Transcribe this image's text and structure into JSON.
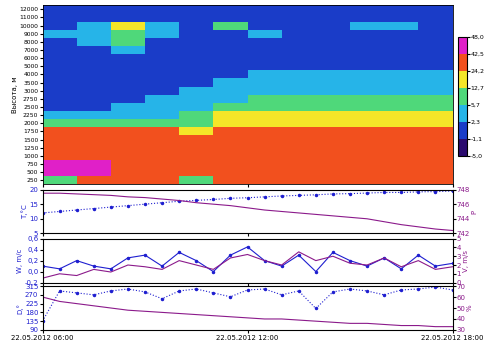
{
  "chart_data": [
    {
      "type": "heatmap",
      "y_label": "Высота, м",
      "x": [
        6.5,
        7.5,
        8.5,
        9.5,
        10.5,
        11.5,
        12.5,
        13.5,
        14.5,
        15.5,
        16.5,
        17.5
      ],
      "categories": [
        "250",
        "500",
        "750",
        "1000",
        "1250",
        "1500",
        "1750",
        "2000",
        "2250",
        "2500",
        "2750",
        "3000",
        "3500",
        "4000",
        "5000",
        "6000",
        "7000",
        "8000",
        "9000",
        "10000",
        "11000",
        "12000"
      ],
      "cells": [
        [
          10,
          30,
          30,
          35,
          8,
          30,
          35,
          30,
          30,
          30,
          30,
          30
        ],
        [
          45,
          45,
          40,
          40,
          35,
          30,
          30,
          30,
          30,
          30,
          28,
          30
        ],
        [
          45,
          45,
          40,
          40,
          35,
          30,
          30,
          30,
          30,
          30,
          28,
          28
        ],
        [
          40,
          42,
          40,
          35,
          30,
          30,
          28,
          30,
          28,
          28,
          28,
          28
        ],
        [
          40,
          40,
          35,
          30,
          30,
          28,
          28,
          28,
          28,
          28,
          26,
          26
        ],
        [
          35,
          35,
          30,
          28,
          25,
          28,
          26,
          26,
          26,
          26,
          26,
          26
        ],
        [
          30,
          28,
          28,
          25,
          20,
          25,
          26,
          25,
          25,
          25,
          25,
          25
        ],
        [
          8,
          8,
          8,
          10,
          8,
          20,
          20,
          20,
          20,
          20,
          20,
          20
        ],
        [
          3,
          3,
          4,
          5,
          6,
          15,
          14,
          15,
          14,
          15,
          15,
          15
        ],
        [
          2,
          2,
          3,
          4,
          5,
          8,
          9,
          9,
          9,
          9,
          9,
          9
        ],
        [
          2,
          2,
          2,
          3,
          4,
          5,
          6,
          6,
          6,
          6,
          6,
          6
        ],
        [
          1.5,
          1.5,
          2,
          2,
          3,
          4,
          4,
          4,
          4,
          4,
          4,
          4
        ],
        [
          1,
          1,
          1.5,
          2,
          2,
          3,
          3,
          3,
          3,
          3,
          3,
          3
        ],
        [
          1,
          1,
          1,
          1.5,
          1.5,
          2,
          2.5,
          2.5,
          2.5,
          2.5,
          2.5,
          2.5
        ],
        [
          0.5,
          1,
          1,
          1,
          1,
          1.5,
          2,
          2,
          2,
          2,
          2,
          2
        ],
        [
          0.5,
          0.5,
          1,
          1,
          1,
          1.5,
          1.5,
          1.5,
          1.5,
          1.5,
          1.5,
          1.5
        ],
        [
          0.5,
          1,
          3,
          1,
          1,
          1,
          1.5,
          1.5,
          1,
          1.5,
          1.5,
          1
        ],
        [
          1,
          4,
          6,
          1,
          1,
          1,
          1,
          1,
          1,
          1,
          1,
          1
        ],
        [
          3,
          4,
          8,
          3,
          2,
          2,
          3,
          2,
          2,
          2,
          2,
          2
        ],
        [
          2,
          3,
          13,
          3,
          2,
          6,
          2,
          2,
          2,
          3,
          4,
          2
        ],
        [
          1,
          1,
          2,
          1,
          1,
          2,
          1,
          1,
          1,
          1,
          2,
          1
        ],
        [
          0,
          0,
          1,
          0,
          0,
          1,
          0,
          0,
          0,
          0,
          1,
          0
        ]
      ],
      "colors": [
        "#2a0a6e",
        "#1a3cc8",
        "#26b4e8",
        "#4fd87a",
        "#f5e628",
        "#f2501e",
        "#e020c8"
      ],
      "colorbar_range": [
        -5.0,
        48.0
      ],
      "colorbar_ticks": [
        {
          "value": -5.0,
          "label": "-5,0"
        },
        {
          "value": -1.1,
          "label": "-1,1"
        },
        {
          "value": 2.3,
          "label": "2,3"
        },
        {
          "value": 5.7,
          "label": "5,7"
        },
        {
          "value": 12.7,
          "label": "12,7"
        },
        {
          "value": 24.2,
          "label": "24,2"
        },
        {
          "value": 42.5,
          "label": "42,5"
        },
        {
          "value": 48.0,
          "label": "48,0"
        }
      ],
      "xlim": [
        6,
        18
      ],
      "xticks": [
        6,
        12,
        18
      ],
      "tick_labels": "y"
    },
    {
      "type": "line",
      "y_label": "T,°C",
      "y2_label": "P",
      "x": [
        6,
        6.5,
        7,
        7.5,
        8,
        8.5,
        9,
        9.5,
        10,
        10.5,
        11,
        11.5,
        12,
        12.5,
        13,
        13.5,
        14,
        14.5,
        15,
        15.5,
        16,
        16.5,
        17,
        17.5,
        18
      ],
      "series": [
        {
          "name": "T,°C",
          "color": "#1f1fd0",
          "line_style": "dotted",
          "marker": "o",
          "values": [
            12.0,
            12.5,
            13.0,
            13.5,
            14.0,
            14.5,
            15.0,
            15.5,
            16.0,
            16.3,
            16.6,
            17.0,
            17.2,
            17.5,
            17.8,
            18.0,
            18.2,
            18.5,
            18.6,
            18.8,
            19.0,
            19.0,
            19.2,
            19.3,
            19.5
          ]
        },
        {
          "name": "P",
          "color": "#8b1a8b",
          "line_style": "solid",
          "marker": "none",
          "axis": "y2",
          "values": [
            747.5,
            747.5,
            747.4,
            747.3,
            747.2,
            747.0,
            746.9,
            746.7,
            746.5,
            746.2,
            746.0,
            745.8,
            745.5,
            745.2,
            745.0,
            744.8,
            744.6,
            744.4,
            744.2,
            744.0,
            743.6,
            743.2,
            742.9,
            742.6,
            742.4
          ]
        }
      ],
      "xlim": [
        6,
        18
      ],
      "xticks": [
        6,
        12,
        18
      ],
      "ylim": [
        5,
        20
      ],
      "yticks": [
        5,
        10,
        15,
        20
      ],
      "y2lim": [
        742,
        748
      ],
      "y2ticks": [
        742,
        744,
        746,
        748
      ],
      "tick_labels": "y"
    },
    {
      "type": "line",
      "y_label": "W, m/c",
      "y2_label": "V, m/s",
      "x": [
        6,
        6.5,
        7,
        7.5,
        8,
        8.5,
        9,
        9.5,
        10,
        10.5,
        11,
        11.5,
        12,
        12.5,
        13,
        13.5,
        14,
        14.5,
        15,
        15.5,
        16,
        16.5,
        17,
        17.5,
        18
      ],
      "series": [
        {
          "name": "W, m/c",
          "color": "#1f1fd0",
          "line_style": "solid",
          "marker": "o",
          "values": [
            0.1,
            0.05,
            0.2,
            0.1,
            0.05,
            0.25,
            0.3,
            0.1,
            0.35,
            0.2,
            0.0,
            0.3,
            0.45,
            0.2,
            0.1,
            0.3,
            0.0,
            0.35,
            0.2,
            0.1,
            0.25,
            0.05,
            0.3,
            0.1,
            0.15
          ]
        },
        {
          "name": "V, m/s",
          "color": "#8b1a8b",
          "line_style": "solid",
          "marker": "none",
          "axis": "y2",
          "values": [
            0.5,
            1.0,
            0.8,
            1.5,
            1.2,
            2.0,
            1.8,
            1.5,
            2.5,
            2.0,
            1.5,
            2.8,
            3.2,
            2.5,
            2.0,
            3.5,
            2.5,
            3.0,
            2.2,
            2.0,
            2.8,
            1.8,
            2.5,
            1.5,
            1.8
          ]
        }
      ],
      "xlim": [
        6,
        18
      ],
      "xticks": [
        6,
        12,
        18
      ],
      "ylim": [
        -0.2,
        0.6
      ],
      "yticks": [
        {
          "value": -0.2,
          "label": "-0,2"
        },
        {
          "value": 0.0,
          "label": "0,0"
        },
        {
          "value": 0.2,
          "label": "0,2"
        },
        {
          "value": 0.4,
          "label": "0,4"
        },
        {
          "value": 0.6,
          "label": "0,6"
        }
      ],
      "y2lim": [
        0,
        5
      ],
      "y2ticks": [
        0,
        1,
        2,
        3,
        4,
        5
      ],
      "tick_labels": "y"
    },
    {
      "type": "line",
      "y_label": "D,°",
      "y2_label": "%",
      "x": [
        6,
        6.5,
        7,
        7.5,
        8,
        8.5,
        9,
        9.5,
        10,
        10.5,
        11,
        11.5,
        12,
        12.5,
        13,
        13.5,
        14,
        14.5,
        15,
        15.5,
        16,
        16.5,
        17,
        17.5,
        18
      ],
      "series": [
        {
          "name": "D,°",
          "color": "#1f1fd0",
          "line_style": "dotted",
          "marker": "o",
          "values": [
            135,
            290,
            280,
            270,
            290,
            300,
            285,
            250,
            290,
            300,
            280,
            260,
            295,
            300,
            270,
            290,
            200,
            285,
            300,
            290,
            270,
            295,
            300,
            310,
            295
          ]
        },
        {
          "name": "%",
          "color": "#8b1a8b",
          "line_style": "solid",
          "marker": "none",
          "axis": "y2",
          "values": [
            60,
            56,
            54,
            52,
            50,
            48,
            47,
            46,
            45,
            44,
            43,
            42,
            41,
            40,
            40,
            39,
            38,
            37,
            36,
            36,
            35,
            34,
            34,
            33,
            33
          ]
        }
      ],
      "xlim": [
        6,
        18
      ],
      "xticks": [
        {
          "value": 6,
          "label": "22.05.2012 06:00"
        },
        {
          "value": 12,
          "label": "22.05.2012 12:00"
        },
        {
          "value": 18,
          "label": "22.05.2012 18:00"
        }
      ],
      "ylim": [
        90,
        315
      ],
      "yticks": [
        90,
        135,
        180,
        225,
        270,
        315
      ],
      "y2lim": [
        30,
        70
      ],
      "y2ticks": [
        30,
        40,
        50,
        60,
        70
      ]
    }
  ]
}
